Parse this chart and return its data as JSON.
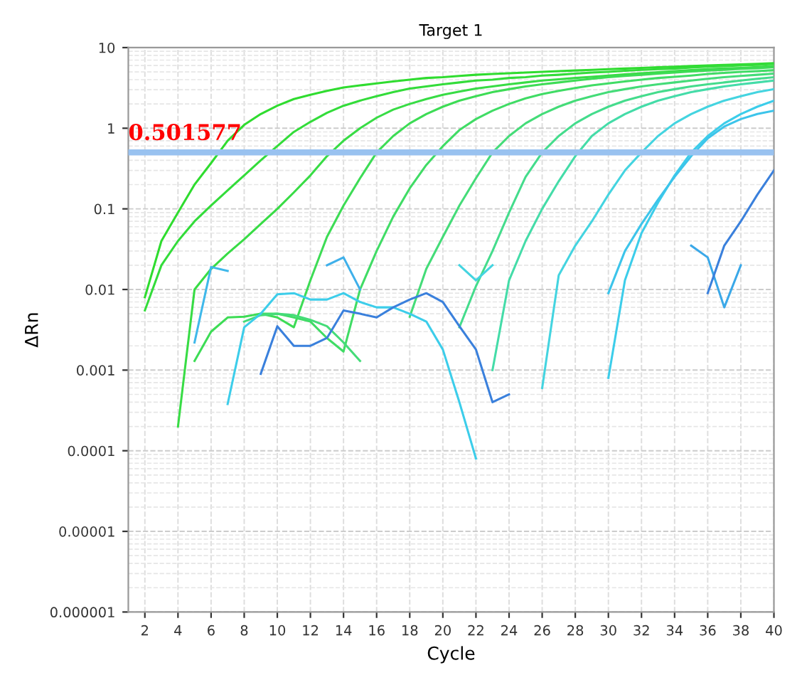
{
  "chart_data": {
    "type": "line",
    "title": "Target 1",
    "xlabel": "Cycle",
    "ylabel": "ΔRn",
    "log": "y",
    "grid": true,
    "marker": "none",
    "line_style": "solid",
    "xlim": [
      1,
      40
    ],
    "xticks": [
      2,
      4,
      6,
      8,
      10,
      12,
      14,
      16,
      18,
      20,
      22,
      24,
      26,
      28,
      30,
      32,
      34,
      36,
      38,
      40
    ],
    "ylim": [
      1e-06,
      10
    ],
    "yticks": [
      {
        "value": 1e-06,
        "label": "0.000001"
      },
      {
        "value": 1e-05,
        "label": "0.00001"
      },
      0.0001,
      0.001,
      0.01,
      0.1,
      1,
      10
    ],
    "ref_lines": [
      {
        "axis": "y",
        "value": 0.501577,
        "label": "0.501577",
        "color": "#99c2f0"
      }
    ],
    "series": [
      {
        "color": "#2fdc2f",
        "x": [
          2,
          3,
          4,
          5,
          6,
          7,
          8,
          9,
          10,
          11,
          12,
          13,
          14,
          15,
          16,
          17,
          18,
          19,
          20,
          21,
          22,
          23,
          24,
          25,
          26,
          27,
          28,
          29,
          30,
          31,
          32,
          33,
          34,
          35,
          36,
          37,
          38,
          39,
          40
        ],
        "values": [
          0.008,
          0.04,
          0.09,
          0.2,
          0.37,
          0.7,
          1.1,
          1.5,
          1.9,
          2.3,
          2.6,
          2.9,
          3.2,
          3.4,
          3.6,
          3.8,
          4.0,
          4.2,
          4.3,
          4.45,
          4.6,
          4.7,
          4.8,
          4.9,
          5.0,
          5.1,
          5.2,
          5.3,
          5.4,
          5.5,
          5.6,
          5.7,
          5.8,
          5.9,
          6.0,
          6.1,
          6.2,
          6.3,
          6.4
        ]
      },
      {
        "color": "#33dc3a",
        "x": [
          2,
          3,
          4,
          5,
          6,
          7,
          8,
          9,
          10,
          11,
          12,
          13,
          14,
          15,
          16,
          17,
          18,
          19,
          20,
          21,
          22,
          23,
          24,
          25,
          26,
          27,
          28,
          29,
          30,
          31,
          32,
          33,
          34,
          35,
          36,
          37,
          38,
          39,
          40
        ],
        "values": [
          0.0055,
          0.02,
          0.04,
          0.07,
          0.11,
          0.17,
          0.26,
          0.4,
          0.6,
          0.9,
          1.2,
          1.55,
          1.9,
          2.2,
          2.5,
          2.8,
          3.1,
          3.3,
          3.5,
          3.7,
          3.9,
          4.0,
          4.2,
          4.3,
          4.5,
          4.6,
          4.75,
          4.9,
          5.0,
          5.15,
          5.3,
          5.4,
          5.5,
          5.65,
          5.8,
          5.9,
          6.0,
          6.1,
          6.3
        ]
      },
      {
        "color": "#38dc45",
        "x": [
          4,
          5,
          6,
          7,
          8,
          9,
          10,
          11,
          12,
          13,
          14,
          15,
          16,
          17,
          18,
          19,
          20,
          21,
          22,
          23,
          24,
          25,
          26,
          27,
          28,
          29,
          30,
          31,
          32,
          33,
          34,
          35,
          36,
          37,
          38,
          39,
          40
        ],
        "values": [
          0.0002,
          0.01,
          0.018,
          0.028,
          0.042,
          0.065,
          0.1,
          0.16,
          0.26,
          0.45,
          0.7,
          1.0,
          1.35,
          1.7,
          2.0,
          2.3,
          2.6,
          2.85,
          3.1,
          3.3,
          3.5,
          3.7,
          3.9,
          4.05,
          4.2,
          4.35,
          4.5,
          4.65,
          4.8,
          4.95,
          5.1,
          5.25,
          5.4,
          5.5,
          5.6,
          5.75,
          5.9
        ]
      },
      {
        "color": "#3ddc55",
        "x": [
          5,
          6,
          7,
          8,
          9,
          10,
          11,
          12,
          13,
          14,
          15,
          16,
          17,
          18,
          19,
          20,
          21,
          22,
          23,
          24,
          25,
          26,
          27,
          28,
          29,
          30,
          31,
          32,
          33,
          34,
          35,
          36,
          37,
          38,
          39,
          40
        ],
        "values": [
          0.0013,
          0.003,
          0.0045,
          0.0046,
          0.005,
          0.0045,
          0.0034,
          0.013,
          0.045,
          0.11,
          0.24,
          0.5,
          0.8,
          1.15,
          1.5,
          1.85,
          2.2,
          2.5,
          2.8,
          3.05,
          3.3,
          3.5,
          3.7,
          3.9,
          4.1,
          4.3,
          4.45,
          4.6,
          4.75,
          4.9,
          5.05,
          5.2,
          5.3,
          5.45,
          5.55,
          5.7
        ]
      },
      {
        "color": "#40dc65",
        "x": [
          9,
          10,
          11,
          12,
          13,
          14,
          15,
          16,
          17,
          18,
          19,
          20,
          21,
          22,
          23,
          24,
          25,
          26,
          27,
          28,
          29,
          30,
          31,
          32,
          33,
          34,
          35,
          36,
          37,
          38,
          39,
          40
        ],
        "values": [
          0.005,
          0.005,
          0.0045,
          0.004,
          0.0025,
          0.0017,
          0.01,
          0.03,
          0.08,
          0.18,
          0.35,
          0.6,
          0.95,
          1.3,
          1.65,
          2.0,
          2.35,
          2.65,
          2.9,
          3.15,
          3.4,
          3.6,
          3.8,
          4.0,
          4.2,
          4.35,
          4.5,
          4.7,
          4.85,
          5.0,
          5.1,
          5.25
        ]
      },
      {
        "color": "#44dc78",
        "x": [
          8,
          9,
          10,
          11,
          12,
          13,
          14,
          15,
          16,
          17,
          18,
          19,
          20,
          21,
          22,
          23,
          24,
          25,
          26,
          27,
          28,
          29,
          30,
          31,
          32,
          33,
          34,
          35,
          36,
          37,
          38,
          39,
          40
        ],
        "values": [
          0.004,
          0.0048,
          0.005,
          0.0048,
          0.0042,
          0.0035,
          0.0022,
          0.0013,
          null,
          null,
          0.0046,
          0.018,
          0.045,
          0.11,
          0.24,
          0.5,
          0.8,
          1.15,
          1.5,
          1.85,
          2.2,
          2.5,
          2.8,
          3.05,
          3.3,
          3.5,
          3.7,
          3.9,
          4.1,
          4.3,
          4.45,
          4.6,
          4.75
        ]
      },
      {
        "color": "#44dc8c",
        "x": [
          21,
          22,
          23,
          24,
          25,
          26,
          27,
          28,
          29,
          30,
          31,
          32,
          33,
          34,
          35,
          36,
          37,
          38,
          39,
          40
        ],
        "values": [
          0.0034,
          0.011,
          0.03,
          0.09,
          0.25,
          0.5,
          0.8,
          1.15,
          1.5,
          1.85,
          2.2,
          2.5,
          2.8,
          3.05,
          3.3,
          3.5,
          3.7,
          3.9,
          4.1,
          4.3
        ]
      },
      {
        "color": "#44dca8",
        "x": [
          23,
          24,
          25,
          26,
          27,
          28,
          29,
          30,
          31,
          32,
          33,
          34,
          35,
          36,
          37,
          38,
          39,
          40
        ],
        "values": [
          0.001,
          0.013,
          0.04,
          0.1,
          0.22,
          0.45,
          0.8,
          1.15,
          1.5,
          1.85,
          2.2,
          2.5,
          2.8,
          3.05,
          3.3,
          3.5,
          3.7,
          3.9
        ]
      },
      {
        "color": "#44d4e0",
        "x": [
          21,
          22,
          23,
          24,
          25,
          26,
          27,
          28,
          29,
          30,
          31,
          32,
          33,
          34,
          35,
          36,
          37,
          38,
          39,
          40
        ],
        "values": [
          0.02,
          0.013,
          0.02,
          null,
          null,
          0.0006,
          0.015,
          0.035,
          0.07,
          0.15,
          0.3,
          0.5,
          0.8,
          1.15,
          1.5,
          1.85,
          2.2,
          2.5,
          2.8,
          3.05
        ]
      },
      {
        "color": "#3ccdea",
        "x": [
          7,
          8,
          9,
          10,
          11,
          12,
          13,
          14,
          15,
          16,
          17,
          18,
          19,
          20,
          21,
          22,
          23,
          30,
          31,
          32,
          33,
          34,
          35,
          36,
          37,
          38,
          39,
          40
        ],
        "values": [
          0.00038,
          0.0034,
          0.005,
          0.0087,
          0.009,
          0.0075,
          0.0075,
          0.009,
          0.007,
          0.006,
          0.006,
          0.005,
          0.004,
          0.0018,
          0.0004,
          8e-05,
          null,
          0.0008,
          0.013,
          0.05,
          0.12,
          0.26,
          0.5,
          0.8,
          1.15,
          1.5,
          1.85,
          2.2
        ]
      },
      {
        "color": "#3cc4ea",
        "x": [
          30,
          31,
          32,
          33,
          34,
          35,
          36,
          37,
          38,
          39,
          40
        ],
        "values": [
          0.009,
          0.03,
          0.065,
          0.13,
          0.25,
          0.45,
          0.75,
          1.05,
          1.3,
          1.5,
          1.65
        ]
      },
      {
        "color": "#3fb8ea",
        "x": [
          5,
          6,
          7
        ],
        "values": [
          0.0022,
          0.019,
          0.017
        ]
      },
      {
        "color": "#3fb0ea",
        "x": [
          13,
          14,
          15
        ],
        "values": [
          0.02,
          0.025,
          0.01
        ]
      },
      {
        "color": "#3aa8e8",
        "x": [
          35,
          36,
          37,
          38
        ],
        "values": [
          0.035,
          0.025,
          0.006,
          0.02
        ]
      },
      {
        "color": "#3a80dc",
        "x": [
          9,
          10,
          11,
          12,
          13,
          14,
          15,
          16,
          17,
          18,
          19,
          20,
          21,
          22,
          23,
          24,
          25,
          36,
          37,
          38,
          39,
          40
        ],
        "values": [
          0.0009,
          0.0035,
          0.002,
          0.002,
          0.0025,
          0.0055,
          0.005,
          0.0045,
          0.006,
          0.0075,
          0.009,
          0.007,
          0.0035,
          0.0018,
          0.0004,
          0.0005,
          null,
          0.009,
          0.035,
          0.07,
          0.15,
          0.3
        ]
      }
    ]
  }
}
